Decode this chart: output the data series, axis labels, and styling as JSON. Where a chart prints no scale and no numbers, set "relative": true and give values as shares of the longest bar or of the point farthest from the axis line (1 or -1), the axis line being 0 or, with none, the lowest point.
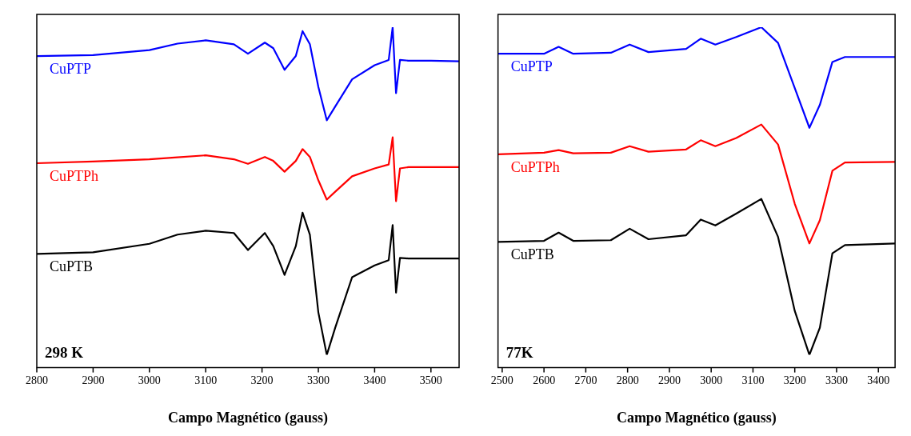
{
  "chart_data": [
    {
      "type": "line",
      "relative": true,
      "xlabel": "Campo Magnético (gauss)",
      "xlim": [
        2800,
        3550
      ],
      "xticks": [
        2800,
        2900,
        3000,
        3100,
        3200,
        3300,
        3400,
        3500
      ],
      "legend": false,
      "annotations": [
        "298 K"
      ],
      "x": [
        2800,
        2900,
        3000,
        3050,
        3100,
        3150,
        3175,
        3205,
        3220,
        3240,
        3260,
        3272,
        3285,
        3300,
        3315,
        3330,
        3360,
        3400,
        3425,
        3432,
        3438,
        3445,
        3460,
        3500,
        3550
      ],
      "series": [
        {
          "name": "CuPTP",
          "color": "#0000ff",
          "values": [
            0.912,
            0.915,
            0.93,
            0.95,
            0.96,
            0.948,
            0.919,
            0.953,
            0.936,
            0.87,
            0.912,
            0.988,
            0.948,
            0.818,
            0.716,
            0.758,
            0.841,
            0.884,
            0.9,
            1.0,
            0.799,
            0.9,
            0.898,
            0.898,
            0.896
          ]
        },
        {
          "name": "CuPTPh",
          "color": "#ff0000",
          "values": [
            0.585,
            0.59,
            0.597,
            0.603,
            0.609,
            0.597,
            0.583,
            0.604,
            0.592,
            0.559,
            0.592,
            0.628,
            0.604,
            0.533,
            0.474,
            0.498,
            0.545,
            0.569,
            0.581,
            0.664,
            0.469,
            0.569,
            0.573,
            0.573,
            0.573
          ]
        },
        {
          "name": "CuPTB",
          "color": "#000000",
          "values": [
            0.308,
            0.313,
            0.339,
            0.367,
            0.379,
            0.372,
            0.32,
            0.372,
            0.332,
            0.244,
            0.332,
            0.434,
            0.367,
            0.13,
            0,
            0.083,
            0.237,
            0.273,
            0.289,
            0.396,
            0.19,
            0.296,
            0.294,
            0.294,
            0.294
          ]
        }
      ]
    },
    {
      "type": "line",
      "relative": true,
      "xlabel": "Campo Magnético (gauss)",
      "xlim": [
        2490,
        3440
      ],
      "xticks": [
        2500,
        2600,
        2700,
        2800,
        2900,
        3000,
        3100,
        3200,
        3300,
        3400
      ],
      "legend": false,
      "annotations": [
        "77K"
      ],
      "x": [
        2490,
        2600,
        2635,
        2670,
        2760,
        2805,
        2850,
        2940,
        2975,
        3010,
        3060,
        3120,
        3160,
        3200,
        3235,
        3260,
        3290,
        3320,
        3440
      ],
      "series": [
        {
          "name": "CuPTP",
          "color": "#0000ff",
          "values": [
            0.919,
            0.919,
            0.94,
            0.919,
            0.922,
            0.947,
            0.924,
            0.934,
            0.965,
            0.947,
            0.97,
            1.0,
            0.952,
            0.814,
            0.693,
            0.763,
            0.894,
            0.909,
            0.909
          ]
        },
        {
          "name": "CuPTPh",
          "color": "#ff0000",
          "values": [
            0.612,
            0.617,
            0.625,
            0.615,
            0.617,
            0.637,
            0.62,
            0.627,
            0.655,
            0.637,
            0.662,
            0.703,
            0.642,
            0.461,
            0.34,
            0.411,
            0.562,
            0.587,
            0.589
          ]
        },
        {
          "name": "CuPTB",
          "color": "#000000",
          "values": [
            0.345,
            0.348,
            0.373,
            0.348,
            0.35,
            0.385,
            0.353,
            0.365,
            0.413,
            0.395,
            0.431,
            0.476,
            0.36,
            0.134,
            0,
            0.083,
            0.31,
            0.335,
            0.34
          ]
        }
      ]
    }
  ]
}
